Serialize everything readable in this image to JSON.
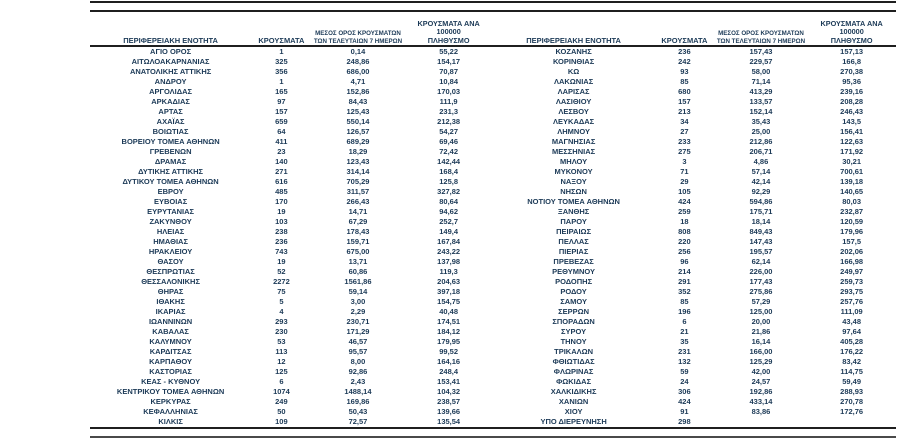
{
  "colors": {
    "text": "#1c3a57",
    "rule_dark": "#1f1f1f",
    "rule_soft": "#4a4a4a",
    "background": "#ffffff"
  },
  "table": {
    "columns": {
      "region": "ΠΕΡΙΦΕΡΕΙΑΚΗ ΕΝΟΤΗΤΑ",
      "cases": "ΚΡΟΥΣΜΑΤΑ",
      "avg7_line1": "ΜΕΣΟΣ ΟΡΟΣ ΚΡΟΥΣΜΑΤΩΝ",
      "avg7_line2": "ΤΩΝ ΤΕΛΕΥΤΑΙΩΝ 7 ΗΜΕΡΩΝ",
      "per100k_line1": "ΚΡΟΥΣΜΑΤΑ ΑΝΑ 100000",
      "per100k_line2": "ΠΛΗΘΥΣΜΟ"
    },
    "left_rows": [
      [
        "ΑΓΙΟ ΟΡΟΣ",
        "1",
        "0,14",
        "55,22"
      ],
      [
        "ΑΙΤΩΛΟΑΚΑΡΝΑΝΙΑΣ",
        "325",
        "248,86",
        "154,17"
      ],
      [
        "ΑΝΑΤΟΛΙΚΗΣ ΑΤΤΙΚΗΣ",
        "356",
        "686,00",
        "70,87"
      ],
      [
        "ΑΝΔΡΟΥ",
        "1",
        "4,71",
        "10,84"
      ],
      [
        "ΑΡΓΟΛΙΔΑΣ",
        "165",
        "152,86",
        "170,03"
      ],
      [
        "ΑΡΚΑΔΙΑΣ",
        "97",
        "84,43",
        "111,9"
      ],
      [
        "ΑΡΤΑΣ",
        "157",
        "125,43",
        "231,3"
      ],
      [
        "ΑΧΑΪΑΣ",
        "659",
        "550,14",
        "212,38"
      ],
      [
        "ΒΟΙΩΤΙΑΣ",
        "64",
        "126,57",
        "54,27"
      ],
      [
        "ΒΟΡΕΙΟΥ ΤΟΜΕΑ ΑΘΗΝΩΝ",
        "411",
        "689,29",
        "69,46"
      ],
      [
        "ΓΡΕΒΕΝΩΝ",
        "23",
        "18,29",
        "72,42"
      ],
      [
        "ΔΡΑΜΑΣ",
        "140",
        "123,43",
        "142,44"
      ],
      [
        "ΔΥΤΙΚΗΣ ΑΤΤΙΚΗΣ",
        "271",
        "314,14",
        "168,4"
      ],
      [
        "ΔΥΤΙΚΟΥ ΤΟΜΕΑ ΑΘΗΝΩΝ",
        "616",
        "705,29",
        "125,8"
      ],
      [
        "ΕΒΡΟΥ",
        "485",
        "311,57",
        "327,82"
      ],
      [
        "ΕΥΒΟΙΑΣ",
        "170",
        "266,43",
        "80,64"
      ],
      [
        "ΕΥΡΥΤΑΝΙΑΣ",
        "19",
        "14,71",
        "94,62"
      ],
      [
        "ΖΑΚΥΝΘΟΥ",
        "103",
        "67,29",
        "252,7"
      ],
      [
        "ΗΛΕΙΑΣ",
        "238",
        "178,43",
        "149,4"
      ],
      [
        "ΗΜΑΘΙΑΣ",
        "236",
        "159,71",
        "167,84"
      ],
      [
        "ΗΡΑΚΛΕΙΟΥ",
        "743",
        "675,00",
        "243,22"
      ],
      [
        "ΘΑΣΟΥ",
        "19",
        "13,71",
        "137,98"
      ],
      [
        "ΘΕΣΠΡΩΤΙΑΣ",
        "52",
        "60,86",
        "119,3"
      ],
      [
        "ΘΕΣΣΑΛΟΝΙΚΗΣ",
        "2272",
        "1561,86",
        "204,63"
      ],
      [
        "ΘΗΡΑΣ",
        "75",
        "59,14",
        "397,18"
      ],
      [
        "ΙΘΑΚΗΣ",
        "5",
        "3,00",
        "154,75"
      ],
      [
        "ΙΚΑΡΙΑΣ",
        "4",
        "2,29",
        "40,48"
      ],
      [
        "ΙΩΑΝΝΙΝΩΝ",
        "293",
        "230,71",
        "174,51"
      ],
      [
        "ΚΑΒΑΛΑΣ",
        "230",
        "171,29",
        "184,12"
      ],
      [
        "ΚΑΛΥΜΝΟΥ",
        "53",
        "46,57",
        "179,95"
      ],
      [
        "ΚΑΡΔΙΤΣΑΣ",
        "113",
        "95,57",
        "99,52"
      ],
      [
        "ΚΑΡΠΑΘΟΥ",
        "12",
        "8,00",
        "164,16"
      ],
      [
        "ΚΑΣΤΟΡΙΑΣ",
        "125",
        "92,86",
        "248,4"
      ],
      [
        "ΚΕΑΣ - ΚΥΘΝΟΥ",
        "6",
        "2,43",
        "153,41"
      ],
      [
        "ΚΕΝΤΡΙΚΟΥ ΤΟΜΕΑ ΑΘΗΝΩΝ",
        "1074",
        "1488,14",
        "104,32"
      ],
      [
        "ΚΕΡΚΥΡΑΣ",
        "249",
        "169,86",
        "238,57"
      ],
      [
        "ΚΕΦΑΛΛΗΝΙΑΣ",
        "50",
        "50,43",
        "139,66"
      ],
      [
        "ΚΙΛΚΙΣ",
        "109",
        "72,57",
        "135,54"
      ]
    ],
    "right_rows": [
      [
        "ΚΟΖΑΝΗΣ",
        "236",
        "157,43",
        "157,13"
      ],
      [
        "ΚΟΡΙΝΘΙΑΣ",
        "242",
        "229,57",
        "166,8"
      ],
      [
        "ΚΩ",
        "93",
        "58,00",
        "270,38"
      ],
      [
        "ΛΑΚΩΝΙΑΣ",
        "85",
        "71,14",
        "95,36"
      ],
      [
        "ΛΑΡΙΣΑΣ",
        "680",
        "413,29",
        "239,16"
      ],
      [
        "ΛΑΣΙΘΙΟΥ",
        "157",
        "133,57",
        "208,28"
      ],
      [
        "ΛΕΣΒΟΥ",
        "213",
        "152,14",
        "246,43"
      ],
      [
        "ΛΕΥΚΑΔΑΣ",
        "34",
        "35,43",
        "143,5"
      ],
      [
        "ΛΗΜΝΟΥ",
        "27",
        "25,00",
        "156,41"
      ],
      [
        "ΜΑΓΝΗΣΙΑΣ",
        "233",
        "212,86",
        "122,63"
      ],
      [
        "ΜΕΣΣΗΝΙΑΣ",
        "275",
        "206,71",
        "171,92"
      ],
      [
        "ΜΗΛΟΥ",
        "3",
        "4,86",
        "30,21"
      ],
      [
        "ΜΥΚΟΝΟΥ",
        "71",
        "57,14",
        "700,61"
      ],
      [
        "ΝΑΞΟΥ",
        "29",
        "42,14",
        "139,18"
      ],
      [
        "ΝΗΣΩΝ",
        "105",
        "92,29",
        "140,65"
      ],
      [
        "ΝΟΤΙΟΥ ΤΟΜΕΑ ΑΘΗΝΩΝ",
        "424",
        "594,86",
        "80,03"
      ],
      [
        "ΞΑΝΘΗΣ",
        "259",
        "175,71",
        "232,87"
      ],
      [
        "ΠΑΡΟΥ",
        "18",
        "18,14",
        "120,59"
      ],
      [
        "ΠΕΙΡΑΙΩΣ",
        "808",
        "849,43",
        "179,96"
      ],
      [
        "ΠΕΛΛΑΣ",
        "220",
        "147,43",
        "157,5"
      ],
      [
        "ΠΙΕΡΙΑΣ",
        "256",
        "195,57",
        "202,06"
      ],
      [
        "ΠΡΕΒΕΖΑΣ",
        "96",
        "62,14",
        "166,98"
      ],
      [
        "ΡΕΘΥΜΝΟΥ",
        "214",
        "226,00",
        "249,97"
      ],
      [
        "ΡΟΔΟΠΗΣ",
        "291",
        "177,43",
        "259,73"
      ],
      [
        "ΡΟΔΟΥ",
        "352",
        "275,86",
        "293,75"
      ],
      [
        "ΣΑΜΟΥ",
        "85",
        "57,29",
        "257,76"
      ],
      [
        "ΣΕΡΡΩΝ",
        "196",
        "125,00",
        "111,09"
      ],
      [
        "ΣΠΟΡΑΔΩΝ",
        "6",
        "20,00",
        "43,48"
      ],
      [
        "ΣΥΡΟΥ",
        "21",
        "21,86",
        "97,64"
      ],
      [
        "ΤΗΝΟΥ",
        "35",
        "16,14",
        "405,28"
      ],
      [
        "ΤΡΙΚΑΛΩΝ",
        "231",
        "166,00",
        "176,22"
      ],
      [
        "ΦΘΙΩΤΙΔΑΣ",
        "132",
        "125,29",
        "83,42"
      ],
      [
        "ΦΛΩΡΙΝΑΣ",
        "59",
        "42,00",
        "114,75"
      ],
      [
        "ΦΩΚΙΔΑΣ",
        "24",
        "24,57",
        "59,49"
      ],
      [
        "ΧΑΛΚΙΔΙΚΗΣ",
        "306",
        "192,86",
        "288,93"
      ],
      [
        "ΧΑΝΙΩΝ",
        "424",
        "433,14",
        "270,78"
      ],
      [
        "ΧΙΟΥ",
        "91",
        "83,86",
        "172,76"
      ],
      [
        "ΥΠΟ ΔΙΕΡΕΥΝΗΣΗ",
        "298",
        "",
        ""
      ]
    ]
  }
}
